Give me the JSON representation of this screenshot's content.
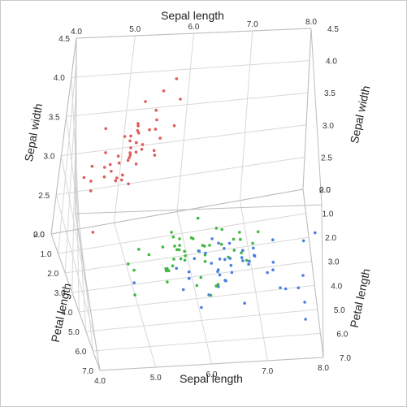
{
  "chart_data": {
    "type": "scatter",
    "chart_kind": "3d-scatter",
    "axes": {
      "x": {
        "label": "Sepal length",
        "range": [
          4.0,
          8.0
        ],
        "ticks": [
          "4.0",
          "5.0",
          "6.0",
          "7.0",
          "8.0"
        ]
      },
      "y": {
        "label": "Sepal width",
        "range": [
          2.0,
          4.5
        ],
        "ticks": [
          "2.0",
          "2.5",
          "3.0",
          "3.5",
          "4.0",
          "4.5"
        ]
      },
      "z": {
        "label": "Petal length",
        "range": [
          0.0,
          7.0
        ],
        "ticks": [
          "0.0",
          "1.0",
          "2.0",
          "3.0",
          "4.0",
          "5.0",
          "6.0",
          "7.0"
        ]
      }
    },
    "grid": true,
    "series": [
      {
        "color": "#e05a5a",
        "points": [
          [
            5.1,
            3.5,
            1.4
          ],
          [
            4.9,
            3.0,
            1.4
          ],
          [
            4.7,
            3.2,
            1.3
          ],
          [
            4.6,
            3.1,
            1.5
          ],
          [
            5.0,
            3.6,
            1.4
          ],
          [
            5.4,
            3.9,
            1.7
          ],
          [
            4.6,
            3.4,
            1.4
          ],
          [
            5.0,
            3.4,
            1.5
          ],
          [
            4.4,
            2.9,
            1.4
          ],
          [
            4.9,
            3.1,
            1.5
          ],
          [
            5.4,
            3.7,
            1.5
          ],
          [
            4.8,
            3.4,
            1.6
          ],
          [
            4.8,
            3.0,
            1.4
          ],
          [
            4.3,
            3.0,
            1.1
          ],
          [
            5.8,
            4.0,
            1.2
          ],
          [
            5.7,
            4.4,
            1.5
          ],
          [
            5.4,
            3.9,
            1.3
          ],
          [
            5.1,
            3.5,
            1.4
          ],
          [
            5.7,
            3.8,
            1.7
          ],
          [
            5.1,
            3.8,
            1.5
          ],
          [
            5.4,
            3.4,
            1.7
          ],
          [
            5.1,
            3.7,
            1.5
          ],
          [
            4.6,
            3.6,
            1.0
          ],
          [
            5.1,
            3.3,
            1.7
          ],
          [
            4.8,
            3.4,
            1.9
          ],
          [
            5.0,
            3.0,
            1.6
          ],
          [
            5.0,
            3.4,
            1.6
          ],
          [
            5.2,
            3.5,
            1.5
          ],
          [
            5.2,
            3.4,
            1.4
          ],
          [
            4.7,
            3.2,
            1.6
          ],
          [
            4.8,
            3.1,
            1.6
          ],
          [
            5.4,
            3.4,
            1.5
          ],
          [
            5.2,
            4.1,
            1.5
          ],
          [
            5.5,
            4.2,
            1.4
          ],
          [
            4.9,
            3.1,
            1.5
          ],
          [
            5.0,
            3.2,
            1.2
          ],
          [
            5.5,
            3.5,
            1.3
          ],
          [
            4.9,
            3.6,
            1.4
          ],
          [
            4.4,
            3.0,
            1.3
          ],
          [
            5.1,
            3.4,
            1.5
          ],
          [
            5.0,
            3.5,
            1.3
          ],
          [
            4.5,
            2.3,
            1.3
          ],
          [
            4.4,
            3.2,
            1.3
          ],
          [
            5.0,
            3.5,
            1.6
          ],
          [
            5.1,
            3.8,
            1.9
          ],
          [
            4.8,
            3.0,
            1.4
          ],
          [
            5.1,
            3.8,
            1.6
          ],
          [
            4.6,
            3.2,
            1.4
          ],
          [
            5.3,
            3.7,
            1.5
          ],
          [
            5.0,
            3.3,
            1.4
          ]
        ]
      },
      {
        "color": "#3fb83f",
        "points": [
          [
            7.0,
            3.2,
            4.7
          ],
          [
            6.4,
            3.2,
            4.5
          ],
          [
            6.9,
            3.1,
            4.9
          ],
          [
            5.5,
            2.3,
            4.0
          ],
          [
            6.5,
            2.8,
            4.6
          ],
          [
            5.7,
            2.8,
            4.5
          ],
          [
            6.3,
            3.3,
            4.7
          ],
          [
            4.9,
            2.4,
            3.3
          ],
          [
            6.6,
            2.9,
            4.6
          ],
          [
            5.2,
            2.7,
            3.9
          ],
          [
            5.0,
            2.0,
            3.5
          ],
          [
            5.9,
            3.0,
            4.2
          ],
          [
            6.0,
            2.2,
            4.0
          ],
          [
            6.1,
            2.9,
            4.7
          ],
          [
            5.6,
            2.9,
            3.6
          ],
          [
            6.7,
            3.1,
            4.4
          ],
          [
            5.6,
            3.0,
            4.5
          ],
          [
            5.8,
            2.7,
            4.1
          ],
          [
            6.2,
            2.2,
            4.5
          ],
          [
            5.6,
            2.5,
            3.9
          ],
          [
            5.9,
            3.2,
            4.8
          ],
          [
            6.1,
            2.8,
            4.0
          ],
          [
            6.3,
            2.5,
            4.9
          ],
          [
            6.1,
            2.8,
            4.7
          ],
          [
            6.4,
            2.9,
            4.3
          ],
          [
            6.6,
            3.0,
            4.4
          ],
          [
            6.8,
            2.8,
            4.8
          ],
          [
            6.7,
            3.0,
            5.0
          ],
          [
            6.0,
            2.9,
            4.5
          ],
          [
            5.7,
            2.6,
            3.5
          ],
          [
            5.5,
            2.4,
            3.8
          ],
          [
            5.5,
            2.4,
            3.7
          ],
          [
            5.8,
            2.7,
            3.9
          ],
          [
            6.0,
            2.7,
            5.1
          ],
          [
            5.4,
            3.0,
            4.5
          ],
          [
            6.0,
            3.4,
            4.5
          ],
          [
            6.7,
            3.1,
            4.7
          ],
          [
            6.3,
            2.3,
            4.4
          ],
          [
            5.6,
            3.0,
            4.1
          ],
          [
            5.5,
            2.5,
            4.0
          ],
          [
            5.5,
            2.6,
            4.4
          ],
          [
            6.1,
            3.0,
            4.6
          ],
          [
            5.8,
            2.6,
            4.0
          ],
          [
            5.0,
            2.3,
            3.3
          ],
          [
            5.6,
            2.7,
            4.2
          ],
          [
            5.7,
            3.0,
            4.2
          ],
          [
            5.7,
            2.9,
            4.2
          ],
          [
            6.2,
            2.9,
            4.3
          ],
          [
            5.1,
            2.5,
            3.0
          ],
          [
            5.7,
            2.8,
            4.1
          ]
        ]
      },
      {
        "color": "#4a7fe0",
        "points": [
          [
            6.3,
            3.3,
            6.0
          ],
          [
            5.8,
            2.7,
            5.1
          ],
          [
            7.1,
            3.0,
            5.9
          ],
          [
            6.3,
            2.9,
            5.6
          ],
          [
            6.5,
            3.0,
            5.8
          ],
          [
            7.6,
            3.0,
            6.6
          ],
          [
            4.9,
            2.5,
            4.5
          ],
          [
            7.3,
            2.9,
            6.3
          ],
          [
            6.7,
            2.5,
            5.8
          ],
          [
            7.2,
            3.6,
            6.1
          ],
          [
            6.5,
            3.2,
            5.1
          ],
          [
            6.4,
            2.7,
            5.3
          ],
          [
            6.8,
            3.0,
            5.5
          ],
          [
            5.7,
            2.5,
            5.0
          ],
          [
            5.8,
            2.8,
            5.1
          ],
          [
            6.4,
            3.2,
            5.3
          ],
          [
            6.5,
            3.0,
            5.5
          ],
          [
            7.7,
            3.8,
            6.7
          ],
          [
            7.7,
            2.6,
            6.9
          ],
          [
            6.0,
            2.2,
            5.0
          ],
          [
            6.9,
            3.2,
            5.7
          ],
          [
            5.6,
            2.8,
            4.9
          ],
          [
            7.7,
            2.8,
            6.7
          ],
          [
            6.3,
            2.7,
            4.9
          ],
          [
            6.7,
            3.3,
            5.7
          ],
          [
            7.2,
            3.2,
            6.0
          ],
          [
            6.2,
            2.8,
            4.8
          ],
          [
            6.1,
            3.0,
            4.9
          ],
          [
            6.4,
            2.8,
            5.6
          ],
          [
            7.2,
            3.0,
            5.8
          ],
          [
            7.4,
            2.8,
            6.1
          ],
          [
            7.9,
            3.8,
            6.4
          ],
          [
            6.4,
            2.8,
            5.6
          ],
          [
            6.3,
            2.8,
            5.1
          ],
          [
            6.1,
            2.6,
            5.6
          ],
          [
            7.7,
            3.0,
            6.1
          ],
          [
            6.3,
            3.4,
            5.6
          ],
          [
            6.4,
            3.1,
            5.5
          ],
          [
            6.0,
            3.0,
            4.8
          ],
          [
            6.9,
            3.1,
            5.4
          ],
          [
            6.7,
            3.1,
            5.6
          ],
          [
            6.9,
            3.1,
            5.1
          ],
          [
            5.8,
            2.7,
            5.1
          ],
          [
            6.8,
            3.2,
            5.9
          ],
          [
            6.7,
            3.3,
            5.7
          ],
          [
            6.7,
            3.0,
            5.2
          ],
          [
            6.3,
            2.5,
            5.0
          ],
          [
            6.5,
            3.0,
            5.2
          ],
          [
            6.2,
            3.4,
            5.4
          ],
          [
            5.9,
            3.0,
            5.1
          ]
        ]
      }
    ]
  }
}
